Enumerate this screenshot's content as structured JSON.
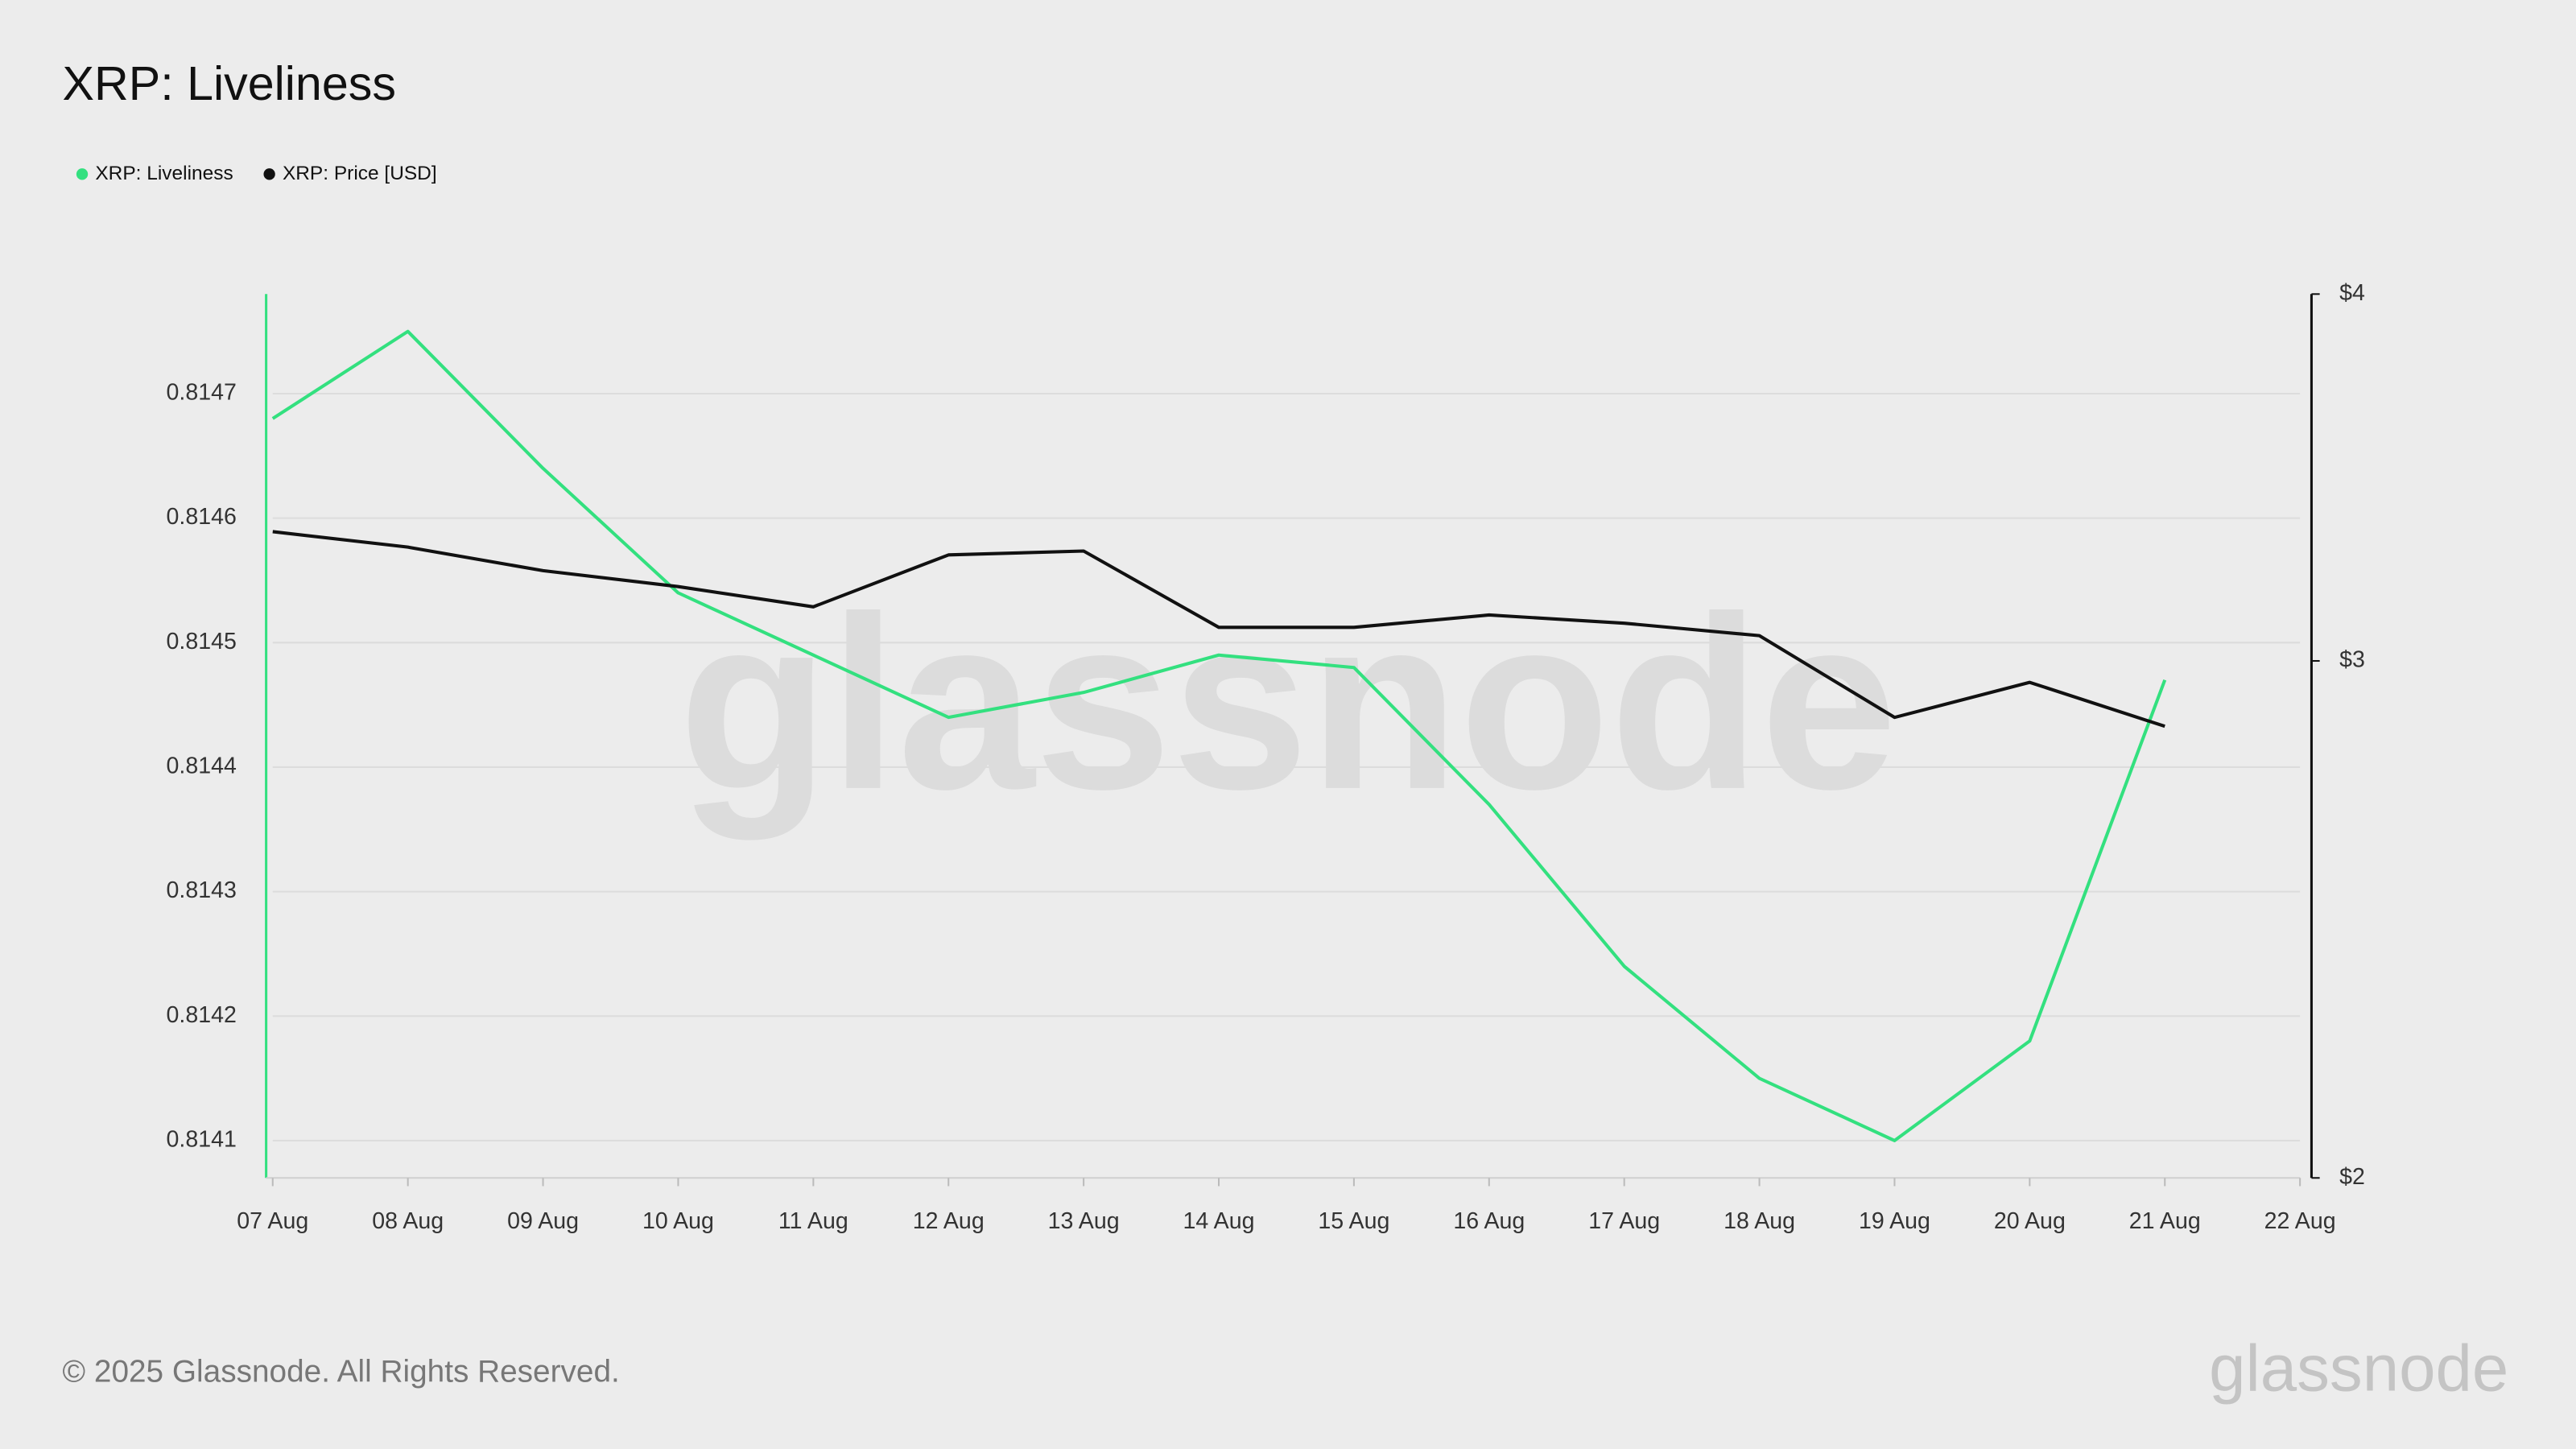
{
  "chart_data": {
    "type": "line",
    "title": "XRP: Liveliness",
    "watermark": "glassnode",
    "footer": "© 2025 Glassnode. All Rights Reserved.",
    "logo": "glassnode",
    "categories": [
      "07 Aug",
      "08 Aug",
      "09 Aug",
      "10 Aug",
      "11 Aug",
      "12 Aug",
      "13 Aug",
      "14 Aug",
      "15 Aug",
      "16 Aug",
      "17 Aug",
      "18 Aug",
      "19 Aug",
      "20 Aug",
      "21 Aug",
      "22 Aug"
    ],
    "series": [
      {
        "name": "XRP: Liveliness",
        "color": "#33e07f",
        "axis": "y",
        "values": [
          0.81468,
          0.81475,
          0.81464,
          0.81454,
          0.81449,
          0.81444,
          0.81446,
          0.81449,
          0.81448,
          0.81437,
          0.81424,
          0.81415,
          0.8141,
          0.81418,
          0.81447,
          null
        ]
      },
      {
        "name": "XRP: Price [USD]",
        "color": "#111111",
        "axis": "y2",
        "values": [
          3.32,
          3.28,
          3.22,
          3.18,
          3.13,
          3.26,
          3.27,
          3.08,
          3.08,
          3.11,
          3.09,
          3.06,
          2.87,
          2.95,
          2.85,
          null
        ]
      }
    ],
    "ylim": [
      0.81407,
      0.81478
    ],
    "yticks": [
      0.8141,
      0.8142,
      0.8143,
      0.8144,
      0.8145,
      0.8146,
      0.8147
    ],
    "y2lim": [
      2,
      4
    ],
    "y2scale": "log",
    "y2ticks": [
      {
        "value": 2,
        "label": "$2"
      },
      {
        "value": 3,
        "label": "$3"
      },
      {
        "value": 4,
        "label": "$4"
      }
    ],
    "grid": true,
    "legend": "top-left"
  }
}
